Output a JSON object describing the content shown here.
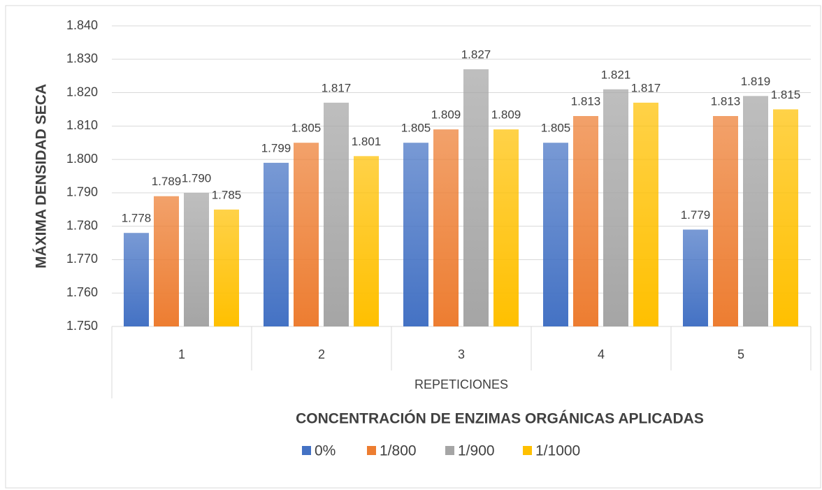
{
  "chart_data": {
    "type": "bar",
    "y_label": "MÁXIMA DENSIDAD SECA",
    "x_label": "REPETICIONES",
    "legend_title": "CONCENTRACIÓN DE ENZIMAS ORGÁNICAS APLICADAS",
    "categories": [
      "1",
      "2",
      "3",
      "4",
      "5"
    ],
    "series": [
      {
        "name": "0%",
        "color": "#4472c4",
        "values": [
          1.778,
          1.799,
          1.805,
          1.805,
          1.779
        ],
        "value_labels": [
          "1.778",
          "1.799",
          "1.805",
          "1.805",
          "1.779"
        ]
      },
      {
        "name": "1/800",
        "color": "#ed7d31",
        "values": [
          1.789,
          1.805,
          1.809,
          1.813,
          1.813
        ],
        "value_labels": [
          "1.789",
          "1.805",
          "1.809",
          "1.813",
          "1.813"
        ]
      },
      {
        "name": "1/900",
        "color": "#a5a5a5",
        "values": [
          1.79,
          1.817,
          1.827,
          1.821,
          1.819
        ],
        "value_labels": [
          "1.790",
          "1.817",
          "1.827",
          "1.821",
          "1.819"
        ]
      },
      {
        "name": "1/1000",
        "color": "#ffc000",
        "values": [
          1.785,
          1.801,
          1.809,
          1.817,
          1.815
        ],
        "value_labels": [
          "1.785",
          "1.801",
          "1.809",
          "1.817",
          "1.815"
        ]
      }
    ],
    "ylim": [
      1.75,
      1.84
    ],
    "yticks": [
      {
        "value": 1.75,
        "label": "1.750"
      },
      {
        "value": 1.76,
        "label": "1.760"
      },
      {
        "value": 1.77,
        "label": "1.770"
      },
      {
        "value": 1.78,
        "label": "1.780"
      },
      {
        "value": 1.79,
        "label": "1.790"
      },
      {
        "value": 1.8,
        "label": "1.800"
      },
      {
        "value": 1.81,
        "label": "1.810"
      },
      {
        "value": 1.82,
        "label": "1.820"
      },
      {
        "value": 1.83,
        "label": "1.830"
      },
      {
        "value": 1.84,
        "label": "1.840"
      }
    ],
    "grid": true,
    "legend": "bottom"
  }
}
